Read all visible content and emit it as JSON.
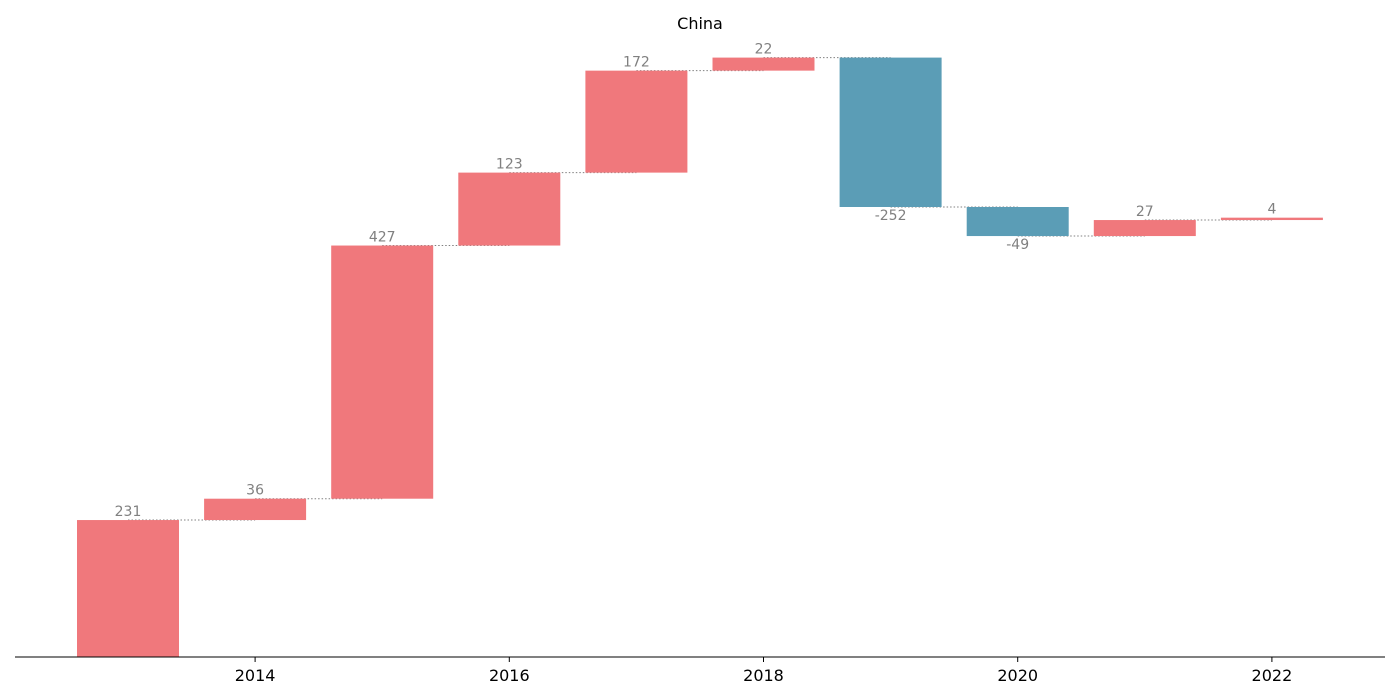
{
  "chart_data": {
    "type": "bar",
    "subtype": "waterfall",
    "title": "China",
    "xlabel": "",
    "ylabel": "",
    "x": [
      2013,
      2014,
      2015,
      2016,
      2017,
      2018,
      2019,
      2020,
      2021,
      2022
    ],
    "values": [
      231,
      36,
      427,
      123,
      172,
      22,
      -252,
      -49,
      27,
      4
    ],
    "data_labels": [
      "231",
      "36",
      "427",
      "123",
      "172",
      "22",
      "-252",
      "-49",
      "27",
      "4"
    ],
    "x_ticks": [
      2014,
      2016,
      2018,
      2020,
      2022
    ],
    "x_tick_labels": [
      "2014",
      "2016",
      "2018",
      "2020",
      "2022"
    ],
    "ylim": [
      0,
      1010
    ],
    "y_axis_visible": false,
    "grid": false,
    "legend": "none",
    "colors": {
      "increase": "#f0787c",
      "decrease": "#5b9db6",
      "connector": "#808080",
      "label": "#808080"
    }
  }
}
